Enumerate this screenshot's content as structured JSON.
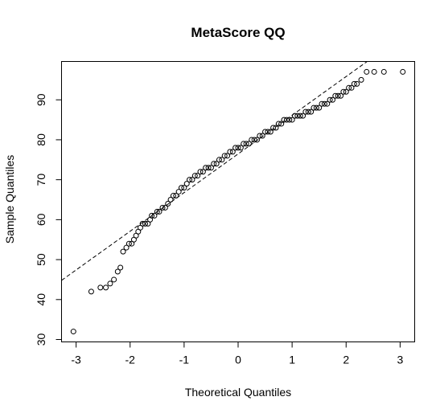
{
  "chart_data": {
    "type": "scatter",
    "title": "MetaScore QQ",
    "xlabel": "Theoretical Quantiles",
    "ylabel": "Sample Quantiles",
    "xlim": [
      -3.27,
      3.27
    ],
    "ylim": [
      29.4,
      99.6
    ],
    "x_ticks": [
      -3,
      -2,
      -1,
      0,
      1,
      2,
      3
    ],
    "y_ticks": [
      30,
      40,
      50,
      60,
      70,
      80,
      90
    ],
    "x_tick_labels": [
      "-3",
      "-2",
      "-1",
      "0",
      "1",
      "2",
      "3"
    ],
    "y_tick_labels": [
      "30",
      "40",
      "50",
      "60",
      "70",
      "80",
      "90"
    ],
    "grid": false,
    "legend": "none",
    "reference_line": {
      "x1": -3.27,
      "y1": 44.8,
      "x2": 2.39,
      "y2": 99.6
    },
    "points": {
      "x": [
        -3.05,
        -2.72,
        -2.55,
        -2.45,
        -2.37,
        -2.3,
        -2.23,
        -2.18,
        -2.13,
        -2.07,
        -2.02,
        -1.97,
        -1.93,
        -1.89,
        -1.85,
        -1.81,
        -1.77,
        -1.72,
        -1.67,
        -1.63,
        -1.6,
        -1.55,
        -1.5,
        -1.46,
        -1.4,
        -1.35,
        -1.3,
        -1.25,
        -1.2,
        -1.15,
        -1.1,
        -1.05,
        -1.0,
        -0.95,
        -0.9,
        -0.85,
        -0.8,
        -0.75,
        -0.7,
        -0.65,
        -0.6,
        -0.55,
        -0.5,
        -0.45,
        -0.4,
        -0.35,
        -0.3,
        -0.25,
        -0.2,
        -0.15,
        -0.1,
        -0.05,
        0.0,
        0.05,
        0.1,
        0.15,
        0.2,
        0.25,
        0.3,
        0.35,
        0.4,
        0.45,
        0.5,
        0.55,
        0.6,
        0.65,
        0.7,
        0.75,
        0.8,
        0.85,
        0.9,
        0.95,
        1.0,
        1.05,
        1.1,
        1.15,
        1.2,
        1.25,
        1.3,
        1.35,
        1.4,
        1.45,
        1.5,
        1.55,
        1.6,
        1.65,
        1.7,
        1.75,
        1.8,
        1.85,
        1.9,
        1.95,
        2.0,
        2.05,
        2.1,
        2.15,
        2.2,
        2.28,
        2.38,
        2.52,
        2.7,
        3.05
      ],
      "y": [
        32,
        42,
        43,
        43,
        44,
        45,
        47,
        48,
        52,
        53,
        54,
        54,
        55,
        56,
        57,
        58,
        59,
        59,
        59,
        60,
        61,
        61,
        62,
        62,
        63,
        63,
        64,
        65,
        66,
        66,
        67,
        68,
        68,
        69,
        70,
        70,
        71,
        71,
        72,
        72,
        73,
        73,
        73,
        74,
        74,
        75,
        75,
        76,
        76,
        77,
        77,
        78,
        78,
        78,
        79,
        79,
        79,
        80,
        80,
        80,
        81,
        81,
        82,
        82,
        82,
        83,
        83,
        84,
        84,
        85,
        85,
        85,
        85,
        86,
        86,
        86,
        86,
        87,
        87,
        87,
        88,
        88,
        88,
        89,
        89,
        89,
        90,
        90,
        91,
        91,
        91,
        92,
        92,
        93,
        93,
        94,
        94,
        95,
        97,
        97,
        97,
        97
      ]
    }
  }
}
